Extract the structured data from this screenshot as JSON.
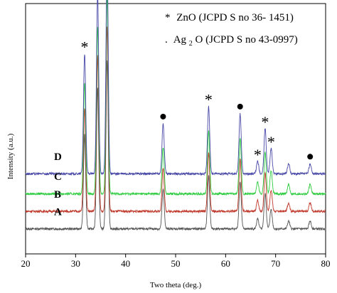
{
  "chart_data": {
    "type": "line",
    "title": "",
    "xlabel": "Two theta (deg.)",
    "ylabel": "Intensity (a.u.)",
    "xlim": [
      20,
      80
    ],
    "ylim": [
      0,
      100
    ],
    "xticks": [
      20,
      30,
      40,
      50,
      60,
      70,
      80
    ],
    "yticks_shown": false,
    "grid": false,
    "legend": {
      "placement": "top-right",
      "entries": [
        {
          "symbol": "*",
          "text": "ZnO (JCPD S no 36- 1451)"
        },
        {
          "symbol": ".",
          "text_pre": "Ag",
          "text_sub": "2",
          "text_post": "O (JCPD S no 43-0997)"
        }
      ]
    },
    "series": [
      {
        "name": "A",
        "color": "#555555",
        "baseline": 10
      },
      {
        "name": "B",
        "color": "#c0392b",
        "baseline": 17
      },
      {
        "name": "C",
        "color": "#2ecc40",
        "baseline": 24
      },
      {
        "name": "D",
        "color": "#4a4aa8",
        "baseline": 32
      }
    ],
    "peaks": [
      {
        "x": 31.8,
        "height": 48,
        "phase": "ZnO",
        "mark": "*"
      },
      {
        "x": 34.4,
        "height": 72,
        "phase": "ZnO",
        "mark": "*"
      },
      {
        "x": 36.3,
        "height": 86,
        "phase": "ZnO",
        "mark": "*"
      },
      {
        "x": 47.5,
        "height": 20,
        "phase": "Ag2O",
        "mark": "●"
      },
      {
        "x": 56.6,
        "height": 27,
        "phase": "ZnO",
        "mark": "*"
      },
      {
        "x": 62.9,
        "height": 24,
        "phase": "Ag2O",
        "mark": "●"
      },
      {
        "x": 66.4,
        "height": 5,
        "phase": "ZnO",
        "mark": "*"
      },
      {
        "x": 67.9,
        "height": 18,
        "phase": "ZnO",
        "mark": "*"
      },
      {
        "x": 69.1,
        "height": 10,
        "phase": "ZnO",
        "mark": "*"
      },
      {
        "x": 72.6,
        "height": 4,
        "phase": "none",
        "mark": ""
      },
      {
        "x": 76.9,
        "height": 4,
        "phase": "Ag2O",
        "mark": "●"
      }
    ]
  }
}
